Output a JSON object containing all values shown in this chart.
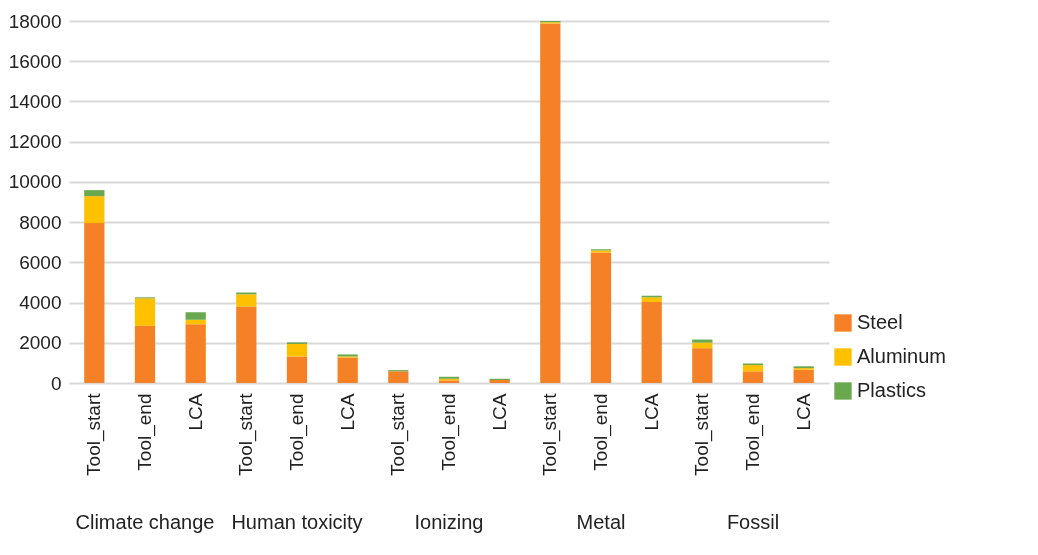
{
  "chart_data": {
    "type": "bar",
    "stacked": true,
    "categories": [
      "Tool_start",
      "Tool_end",
      "LCA",
      "Tool_start",
      "Tool_end",
      "LCA",
      "Tool_start",
      "Tool_end",
      "LCA",
      "Tool_start",
      "Tool_end",
      "LCA",
      "Tool_start",
      "Tool_end",
      "LCA"
    ],
    "series": [
      {
        "name": "Steel",
        "color": "#f58025",
        "values": [
          7950,
          2840,
          2920,
          3800,
          1320,
          1270,
          580,
          130,
          150,
          17880,
          6490,
          4030,
          1730,
          580,
          660
        ]
      },
      {
        "name": "Aluminum",
        "color": "#ffc000",
        "values": [
          1340,
          1370,
          220,
          610,
          620,
          50,
          null,
          80,
          null,
          60,
          100,
          230,
          280,
          310,
          80
        ]
      },
      {
        "name": "Plastics",
        "color": "#6aa84f",
        "values": [
          300,
          50,
          380,
          90,
          80,
          100,
          60,
          100,
          60,
          60,
          60,
          80,
          150,
          80,
          90
        ]
      }
    ],
    "annotations": [
      "Climate change",
      "Human toxicity",
      "Ionizing",
      "Metal",
      "Fossil"
    ],
    "ylim": [
      0,
      18000
    ],
    "yticks": [
      0,
      2000,
      4000,
      6000,
      8000,
      10000,
      12000,
      14000,
      16000,
      18000
    ],
    "grid": "y",
    "legend": "right"
  }
}
